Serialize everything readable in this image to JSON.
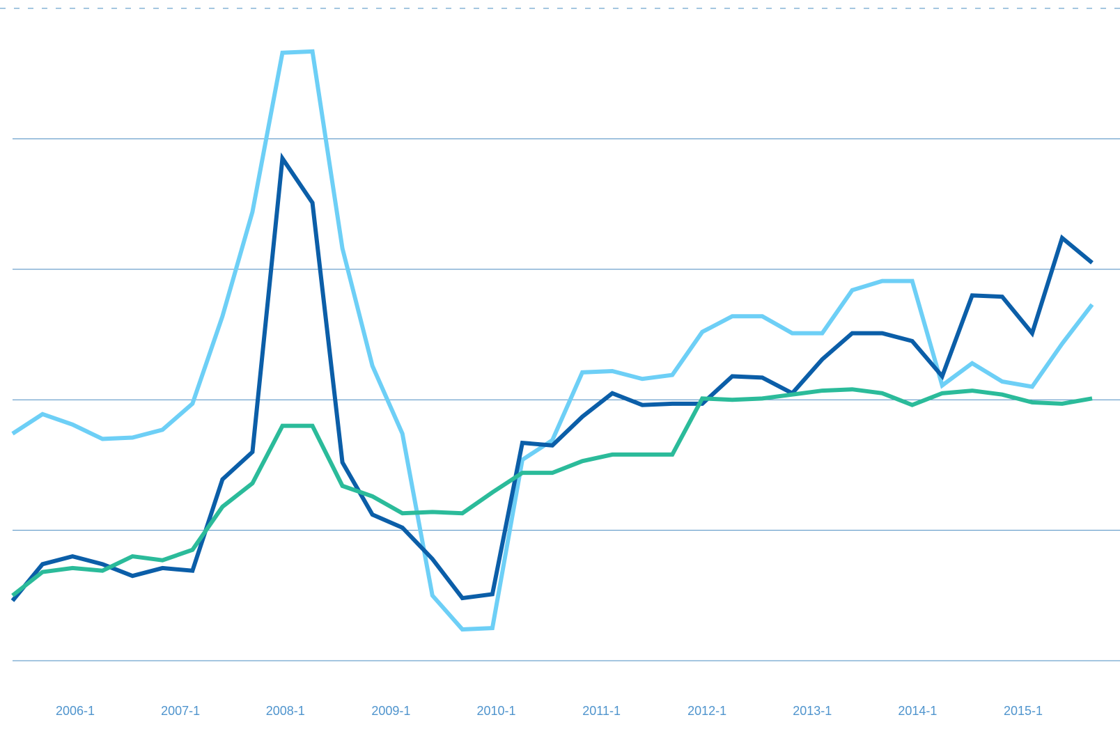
{
  "chart_data": {
    "type": "line",
    "xlim": [
      0,
      36
    ],
    "xticks": [
      {
        "value": 2.09,
        "label": "2006-1"
      },
      {
        "value": 5.6,
        "label": "2007-1"
      },
      {
        "value": 9.1,
        "label": "2008-1"
      },
      {
        "value": 12.62,
        "label": "2009-1"
      },
      {
        "value": 16.13,
        "label": "2010-1"
      },
      {
        "value": 19.64,
        "label": "2011-1"
      },
      {
        "value": 23.16,
        "label": "2012-1"
      },
      {
        "value": 26.67,
        "label": "2013-1"
      },
      {
        "value": 30.18,
        "label": "2014-1"
      },
      {
        "value": 33.7,
        "label": "2015-1"
      }
    ],
    "ylim": [
      0,
      5
    ],
    "yticks": [
      0,
      1,
      2,
      3,
      4,
      5
    ],
    "grid": true,
    "series": [
      {
        "color": "#6dcff6",
        "values": [
          1.74,
          1.89,
          1.81,
          1.7,
          1.71,
          1.77,
          1.97,
          2.64,
          3.44,
          4.66,
          4.67,
          3.16,
          2.26,
          1.74,
          0.5,
          0.24,
          0.25,
          1.54,
          1.69,
          2.21,
          2.22,
          2.16,
          2.19,
          2.52,
          2.64,
          2.64,
          2.51,
          2.51,
          2.84,
          2.91,
          2.91,
          2.11,
          2.28,
          2.14,
          2.1,
          2.43,
          2.73
        ]
      },
      {
        "color": "#0b5ea8",
        "values": [
          0.46,
          0.74,
          0.8,
          0.74,
          0.65,
          0.71,
          0.69,
          1.39,
          1.6,
          3.85,
          3.51,
          1.52,
          1.12,
          1.02,
          0.78,
          0.48,
          0.51,
          1.67,
          1.65,
          1.87,
          2.05,
          1.96,
          1.97,
          1.97,
          2.18,
          2.17,
          2.05,
          2.31,
          2.51,
          2.51,
          2.45,
          2.18,
          2.8,
          2.79,
          2.51,
          3.24,
          3.05
        ]
      },
      {
        "color": "#2bbb9a",
        "values": [
          0.5,
          0.68,
          0.71,
          0.69,
          0.8,
          0.77,
          0.85,
          1.18,
          1.36,
          1.8,
          1.8,
          1.34,
          1.26,
          1.13,
          1.14,
          1.13,
          1.29,
          1.44,
          1.44,
          1.53,
          1.58,
          1.58,
          1.58,
          2.01,
          2.0,
          2.01,
          2.04,
          2.07,
          2.08,
          2.05,
          1.96,
          2.05,
          2.07,
          2.04,
          1.98,
          1.97,
          2.01
        ]
      }
    ]
  }
}
